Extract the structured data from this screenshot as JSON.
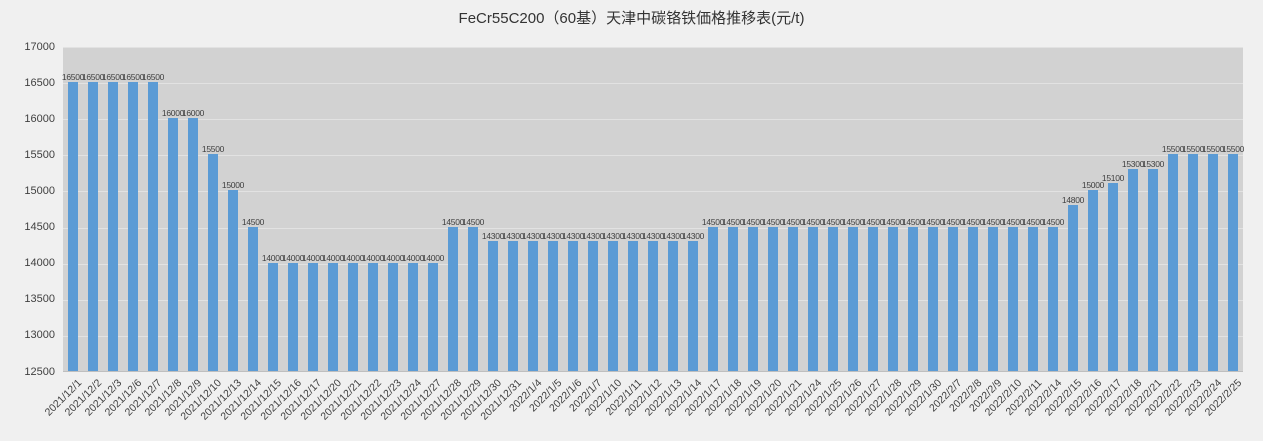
{
  "page": {
    "background": "#F0F0F0"
  },
  "chart_data": {
    "type": "bar",
    "title": "FeCr55C200（60基）天津中碳铬铁価格推移表(元/t)",
    "xlabel": "",
    "ylabel": "",
    "ylim": [
      12500,
      17000
    ],
    "ytick_step": 500,
    "ytick_labels": [
      "12500",
      "13000",
      "13500",
      "14000",
      "14500",
      "15000",
      "15500",
      "16000",
      "16500",
      "17000"
    ],
    "grid": true,
    "legend": "none",
    "data_labels": true,
    "categories": [
      "2021/12/1",
      "2021/12/2",
      "2021/12/3",
      "2021/12/6",
      "2021/12/7",
      "2021/12/8",
      "2021/12/9",
      "2021/12/10",
      "2021/12/13",
      "2021/12/14",
      "2021/12/15",
      "2021/12/16",
      "2021/12/17",
      "2021/12/20",
      "2021/12/21",
      "2021/12/22",
      "2021/12/23",
      "2021/12/24",
      "2021/12/27",
      "2021/12/28",
      "2021/12/29",
      "2021/12/30",
      "2021/12/31",
      "2022/1/4",
      "2022/1/5",
      "2022/1/6",
      "2022/1/7",
      "2022/1/10",
      "2022/1/11",
      "2022/1/12",
      "2022/1/13",
      "2022/1/14",
      "2022/1/17",
      "2022/1/18",
      "2022/1/19",
      "2022/1/20",
      "2022/1/21",
      "2022/1/24",
      "2022/1/25",
      "2022/1/26",
      "2022/1/27",
      "2022/1/28",
      "2022/1/29",
      "2022/1/30",
      "2022/2/7",
      "2022/2/8",
      "2022/2/9",
      "2022/2/10",
      "2022/2/11",
      "2022/2/14",
      "2022/2/15",
      "2022/2/16",
      "2022/2/17",
      "2022/2/18",
      "2022/2/21",
      "2022/2/22",
      "2022/2/23",
      "2022/2/24",
      "2022/2/25"
    ],
    "values": [
      16500,
      16500,
      16500,
      16500,
      16500,
      16000,
      16000,
      15500,
      15000,
      14500,
      14000,
      14000,
      14000,
      14000,
      14000,
      14000,
      14000,
      14000,
      14000,
      14500,
      14500,
      14300,
      14300,
      14300,
      14300,
      14300,
      14300,
      14300,
      14300,
      14300,
      14300,
      14300,
      14500,
      14500,
      14500,
      14500,
      14500,
      14500,
      14500,
      14500,
      14500,
      14500,
      14500,
      14500,
      14500,
      14500,
      14500,
      14500,
      14500,
      14500,
      14800,
      15000,
      15100,
      15300,
      15300,
      15500,
      15500,
      15500,
      15500
    ],
    "colors": {
      "bar": "#5B9BD5",
      "plot_bg": "#D2D2D2",
      "outer_bg": "#F0F0F0",
      "grid_line": "#E2E2E2",
      "axis_line": "#BFBFBF",
      "text": "#404040"
    }
  }
}
